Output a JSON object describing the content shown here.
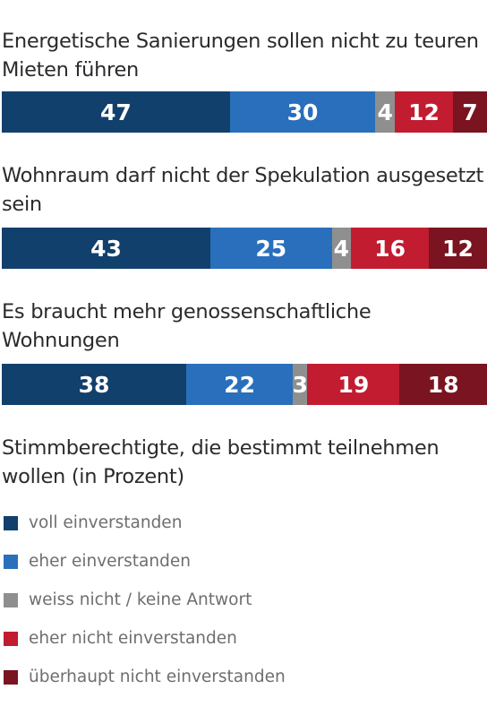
{
  "chart_data": {
    "type": "bar",
    "stacked": true,
    "orientation": "horizontal",
    "categories": [
      "Energetische Sanierungen sollen nicht zu teuren Mieten führen",
      "Wohnraum darf nicht der Spekulation ausgesetzt sein",
      "Es braucht mehr genossenschaftliche Wohnungen"
    ],
    "series": [
      {
        "name": "voll einverstanden",
        "color": "#12406c",
        "values": [
          47,
          43,
          38
        ]
      },
      {
        "name": "eher einverstanden",
        "color": "#2a6fbb",
        "values": [
          30,
          25,
          22
        ]
      },
      {
        "name": "weiss nicht / keine Antwort",
        "color": "#8f8f8f",
        "values": [
          4,
          4,
          3
        ]
      },
      {
        "name": "eher nicht einverstanden",
        "color": "#c21c31",
        "values": [
          12,
          16,
          19
        ]
      },
      {
        "name": "überhaupt nicht einverstanden",
        "color": "#7a1420",
        "values": [
          7,
          12,
          18
        ]
      }
    ],
    "title": "Stimmberechtigte, die bestimmt teilnehmen wollen (in Prozent)",
    "legend_position": "bottom"
  }
}
